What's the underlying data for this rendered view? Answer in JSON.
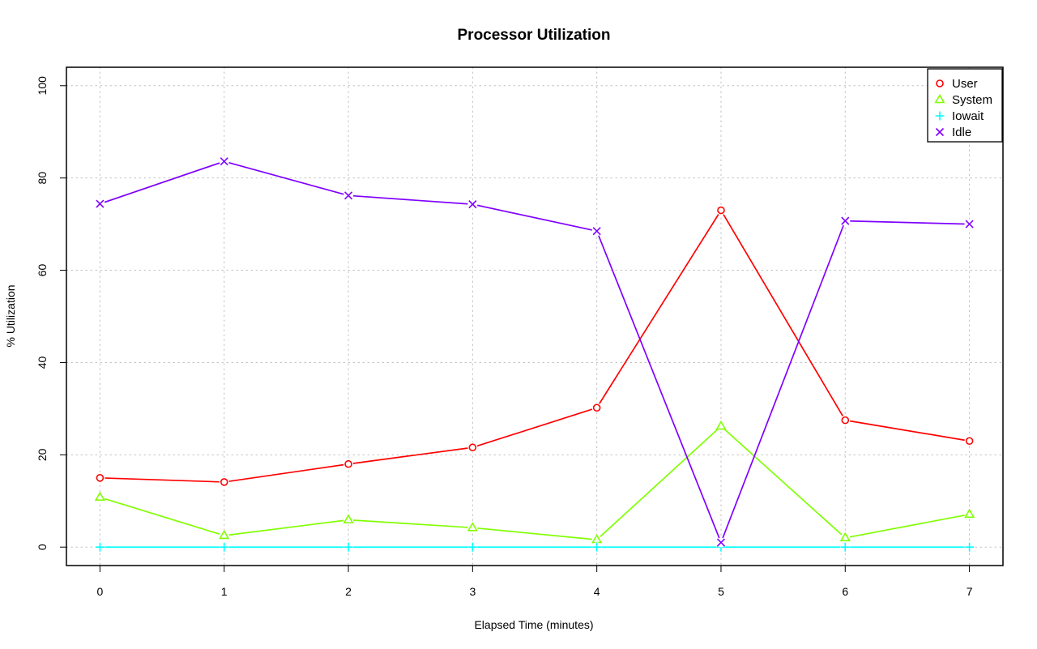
{
  "chart_data": {
    "type": "line",
    "title": "Processor Utilization",
    "xlabel": "Elapsed Time (minutes)",
    "ylabel": "% Utilization",
    "x": [
      0,
      1,
      2,
      3,
      4,
      5,
      6,
      7
    ],
    "xlim": [
      -0.27,
      7.27
    ],
    "ylim": [
      -4,
      104
    ],
    "x_ticks": [
      "0",
      "1",
      "2",
      "3",
      "4",
      "5",
      "6",
      "7"
    ],
    "y_ticks": [
      "0",
      "20",
      "40",
      "60",
      "80",
      "100"
    ],
    "grid": true,
    "legend_position": "top-right",
    "series": [
      {
        "name": "User",
        "color": "#ff0000",
        "marker": "circle",
        "values": [
          15.0,
          14.1,
          18.0,
          21.6,
          30.2,
          73.0,
          27.5,
          23.0
        ]
      },
      {
        "name": "System",
        "color": "#80ff00",
        "marker": "triangle",
        "values": [
          10.8,
          2.5,
          5.9,
          4.2,
          1.6,
          26.2,
          2.0,
          7.1
        ]
      },
      {
        "name": "Iowait",
        "color": "#00ffff",
        "marker": "plus",
        "values": [
          0.0,
          0.0,
          0.0,
          0.0,
          0.0,
          0.0,
          0.0,
          0.0
        ]
      },
      {
        "name": "Idle",
        "color": "#8000ff",
        "marker": "cross",
        "values": [
          74.4,
          83.6,
          76.2,
          74.3,
          68.5,
          1.0,
          70.7,
          70.0
        ]
      }
    ]
  }
}
